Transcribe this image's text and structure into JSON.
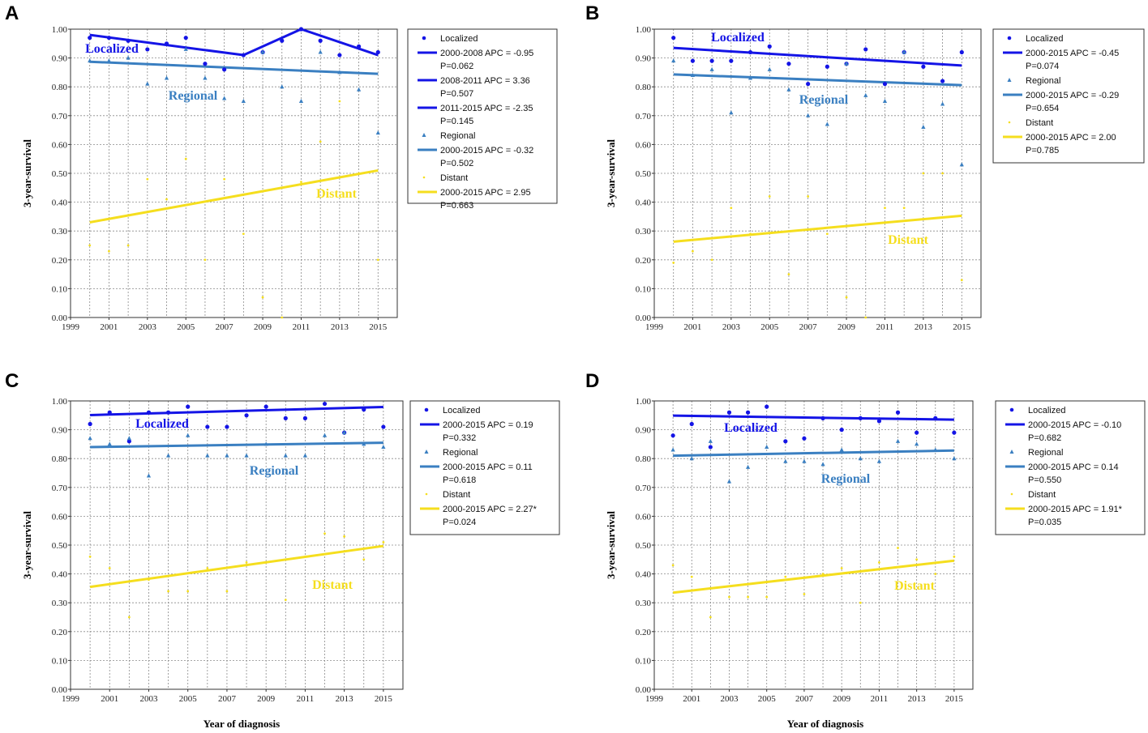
{
  "colors": {
    "localized": "#1414e6",
    "regional": "#3a7fc1",
    "distant": "#f5de1e"
  },
  "axis_labels": {
    "ylabel": "3-year-survival",
    "xlabel": "Year of diagnosis"
  },
  "chart_data": [
    {
      "panel": "A",
      "type": "scatter",
      "ylabel": "3-year-survival",
      "xlabel": "",
      "xlim": [
        1999,
        2016
      ],
      "ylim": [
        0,
        1
      ],
      "xticks": [
        "1999",
        "2001",
        "2003",
        "2005",
        "2007",
        "2009",
        "2011",
        "2013",
        "2015"
      ],
      "yticks": [
        "0.00",
        "0.10",
        "0.20",
        "0.30",
        "0.40",
        "0.50",
        "0.60",
        "0.70",
        "0.80",
        "0.90",
        "1.00"
      ],
      "group_labels": {
        "localized": "Localized",
        "regional": "Regional",
        "distant": "Distant"
      },
      "series": [
        {
          "name": "Localized",
          "key": "localized",
          "x": [
            2000,
            2001,
            2002,
            2003,
            2004,
            2005,
            2006,
            2007,
            2008,
            2009,
            2010,
            2011,
            2012,
            2013,
            2014,
            2015
          ],
          "values": [
            0.97,
            0.97,
            0.96,
            0.93,
            0.95,
            0.97,
            0.88,
            0.86,
            0.91,
            0.92,
            0.96,
            1.0,
            0.96,
            0.91,
            0.94,
            0.92
          ]
        },
        {
          "name": "Regional",
          "key": "regional",
          "x": [
            2000,
            2001,
            2002,
            2003,
            2004,
            2005,
            2006,
            2007,
            2008,
            2009,
            2010,
            2011,
            2012,
            2013,
            2014,
            2015
          ],
          "values": [
            0.89,
            0.89,
            0.9,
            0.81,
            0.83,
            0.93,
            0.83,
            0.76,
            0.75,
            0.92,
            0.8,
            0.75,
            0.92,
            0.85,
            0.79,
            0.64
          ]
        },
        {
          "name": "Distant",
          "key": "distant",
          "x": [
            2000,
            2001,
            2002,
            2003,
            2004,
            2005,
            2006,
            2007,
            2008,
            2009,
            2010,
            2011,
            2012,
            2013,
            2014,
            2015
          ],
          "values": [
            0.25,
            0.23,
            0.25,
            0.48,
            0.41,
            0.55,
            0.2,
            0.48,
            0.29,
            0.07,
            0.0,
            0.47,
            0.61,
            0.75,
            0.5,
            0.2
          ]
        }
      ],
      "trend_lines": [
        {
          "key": "localized",
          "x": [
            2000,
            2008,
            2011,
            2015
          ],
          "values": [
            0.98,
            0.91,
            1.0,
            0.91
          ]
        },
        {
          "key": "regional",
          "x": [
            2000,
            2015
          ],
          "values": [
            0.887,
            0.845
          ]
        },
        {
          "key": "distant",
          "x": [
            2000,
            2015
          ],
          "values": [
            0.33,
            0.51
          ]
        }
      ],
      "legend": [
        {
          "kind": "dot",
          "key": "localized",
          "lines": [
            "Localized"
          ]
        },
        {
          "kind": "line",
          "key": "localized",
          "lines": [
            "2000-2008 APC  = -0.95",
            "P=0.062"
          ]
        },
        {
          "kind": "line",
          "key": "localized",
          "lines": [
            "2008-2011 APC  =  3.36",
            "P=0.507"
          ]
        },
        {
          "kind": "line",
          "key": "localized",
          "lines": [
            "2011-2015 APC  = -2.35",
            "P=0.145"
          ]
        },
        {
          "kind": "tri",
          "key": "regional",
          "lines": [
            "Regional"
          ]
        },
        {
          "kind": "line",
          "key": "regional",
          "lines": [
            "2000-2015 APC  = -0.32",
            "P=0.502"
          ]
        },
        {
          "kind": "small",
          "key": "distant",
          "lines": [
            "Distant"
          ]
        },
        {
          "kind": "line",
          "key": "distant",
          "lines": [
            "2000-2015 APC  = 2.95",
            "P=0.663"
          ]
        }
      ]
    },
    {
      "panel": "B",
      "type": "scatter",
      "ylabel": "3-year-survival",
      "xlabel": "",
      "xlim": [
        1999,
        2016
      ],
      "ylim": [
        0,
        1
      ],
      "xticks": [
        "1999",
        "2001",
        "2003",
        "2005",
        "2007",
        "2009",
        "2011",
        "2013",
        "2015"
      ],
      "yticks": [
        "0.00",
        "0.10",
        "0.20",
        "0.30",
        "0.40",
        "0.50",
        "0.60",
        "0.70",
        "0.80",
        "0.90",
        "1.00"
      ],
      "group_labels": {
        "localized": "Localized",
        "regional": "Regional",
        "distant": "Distant"
      },
      "series": [
        {
          "name": "Localized",
          "key": "localized",
          "x": [
            2000,
            2001,
            2002,
            2003,
            2004,
            2005,
            2006,
            2007,
            2008,
            2009,
            2010,
            2011,
            2012,
            2013,
            2014,
            2015
          ],
          "values": [
            0.97,
            0.89,
            0.89,
            0.89,
            0.92,
            0.94,
            0.88,
            0.81,
            0.87,
            0.88,
            0.93,
            0.81,
            0.92,
            0.87,
            0.82,
            0.92
          ]
        },
        {
          "name": "Regional",
          "key": "regional",
          "x": [
            2000,
            2001,
            2002,
            2003,
            2004,
            2005,
            2006,
            2007,
            2008,
            2009,
            2010,
            2011,
            2012,
            2013,
            2014,
            2015
          ],
          "values": [
            0.89,
            0.84,
            0.86,
            0.71,
            0.83,
            0.86,
            0.79,
            0.7,
            0.67,
            0.88,
            0.77,
            0.75,
            0.92,
            0.66,
            0.74,
            0.53
          ]
        },
        {
          "name": "Distant",
          "key": "distant",
          "x": [
            2000,
            2001,
            2002,
            2003,
            2004,
            2005,
            2006,
            2007,
            2008,
            2009,
            2010,
            2011,
            2012,
            2013,
            2014,
            2015
          ],
          "values": [
            0.19,
            0.23,
            0.2,
            0.38,
            0.29,
            0.42,
            0.15,
            0.42,
            0.29,
            0.07,
            0.0,
            0.38,
            0.38,
            0.5,
            0.5,
            0.13
          ]
        }
      ],
      "trend_lines": [
        {
          "key": "localized",
          "x": [
            2000,
            2015
          ],
          "values": [
            0.935,
            0.874
          ]
        },
        {
          "key": "regional",
          "x": [
            2000,
            2015
          ],
          "values": [
            0.843,
            0.806
          ]
        },
        {
          "key": "distant",
          "x": [
            2000,
            2015
          ],
          "values": [
            0.263,
            0.353
          ]
        }
      ],
      "legend": [
        {
          "kind": "dot",
          "key": "localized",
          "lines": [
            "Localized"
          ]
        },
        {
          "kind": "line",
          "key": "localized",
          "lines": [
            "2000-2015 APC  = -0.45",
            "P=0.074"
          ]
        },
        {
          "kind": "tri",
          "key": "regional",
          "lines": [
            "Regional"
          ]
        },
        {
          "kind": "line",
          "key": "regional",
          "lines": [
            "2000-2015 APC  = -0.29",
            "P=0.654"
          ]
        },
        {
          "kind": "small",
          "key": "distant",
          "lines": [
            "Distant"
          ]
        },
        {
          "kind": "line",
          "key": "distant",
          "lines": [
            "2000-2015 APC  = 2.00",
            "P=0.785"
          ]
        }
      ]
    },
    {
      "panel": "C",
      "type": "scatter",
      "ylabel": "3-year-survival",
      "xlabel": "Year of diagnosis",
      "xlim": [
        1999,
        2016
      ],
      "ylim": [
        0,
        1
      ],
      "xticks": [
        "1999",
        "2001",
        "2003",
        "2005",
        "2007",
        "2009",
        "2011",
        "2013",
        "2015"
      ],
      "yticks": [
        "0.00",
        "0.10",
        "0.20",
        "0.30",
        "0.40",
        "0.50",
        "0.60",
        "0.70",
        "0.80",
        "0.90",
        "1.00"
      ],
      "group_labels": {
        "localized": "Localized",
        "regional": "Regional",
        "distant": "Distant"
      },
      "series": [
        {
          "name": "Localized",
          "key": "localized",
          "x": [
            2000,
            2001,
            2002,
            2003,
            2004,
            2005,
            2006,
            2007,
            2008,
            2009,
            2010,
            2011,
            2012,
            2013,
            2014,
            2015
          ],
          "values": [
            0.92,
            0.96,
            0.86,
            0.96,
            0.96,
            0.98,
            0.91,
            0.91,
            0.95,
            0.98,
            0.94,
            0.94,
            0.99,
            0.89,
            0.97,
            0.91
          ]
        },
        {
          "name": "Regional",
          "key": "regional",
          "x": [
            2000,
            2001,
            2002,
            2003,
            2004,
            2005,
            2006,
            2007,
            2008,
            2009,
            2010,
            2011,
            2012,
            2013,
            2014,
            2015
          ],
          "values": [
            0.87,
            0.85,
            0.87,
            0.74,
            0.81,
            0.88,
            0.81,
            0.81,
            0.81,
            0.85,
            0.81,
            0.81,
            0.88,
            0.89,
            0.85,
            0.84
          ]
        },
        {
          "name": "Distant",
          "key": "distant",
          "x": [
            2000,
            2001,
            2002,
            2003,
            2004,
            2005,
            2006,
            2007,
            2008,
            2009,
            2010,
            2011,
            2012,
            2013,
            2014,
            2015
          ],
          "values": [
            0.46,
            0.42,
            0.25,
            0.38,
            0.34,
            0.34,
            0.42,
            0.34,
            0.44,
            0.44,
            0.31,
            0.46,
            0.54,
            0.53,
            0.45,
            0.51
          ]
        }
      ],
      "trend_lines": [
        {
          "key": "localized",
          "x": [
            2000,
            2015
          ],
          "values": [
            0.951,
            0.979
          ]
        },
        {
          "key": "regional",
          "x": [
            2000,
            2015
          ],
          "values": [
            0.84,
            0.855
          ]
        },
        {
          "key": "distant",
          "x": [
            2000,
            2015
          ],
          "values": [
            0.355,
            0.497
          ]
        }
      ],
      "legend": [
        {
          "kind": "dot",
          "key": "localized",
          "lines": [
            "Localized"
          ]
        },
        {
          "kind": "line",
          "key": "localized",
          "lines": [
            "2000-2015 APC  = 0.19",
            "P=0.332"
          ]
        },
        {
          "kind": "tri",
          "key": "regional",
          "lines": [
            "Regional"
          ]
        },
        {
          "kind": "line",
          "key": "regional",
          "lines": [
            "2000-2015 APC  = 0.11",
            "P=0.618"
          ]
        },
        {
          "kind": "small",
          "key": "distant",
          "lines": [
            "Distant"
          ]
        },
        {
          "kind": "line",
          "key": "distant",
          "lines": [
            "2000-2015 APC  = 2.27*",
            "P=0.024"
          ]
        }
      ]
    },
    {
      "panel": "D",
      "type": "scatter",
      "ylabel": "3-year-survival",
      "xlabel": "Year of diagnosis",
      "xlim": [
        1999,
        2016
      ],
      "ylim": [
        0,
        1
      ],
      "xticks": [
        "1999",
        "2001",
        "2003",
        "2005",
        "2007",
        "2009",
        "2011",
        "2013",
        "2015"
      ],
      "yticks": [
        "0.00",
        "0.10",
        "0.20",
        "0.30",
        "0.40",
        "0.50",
        "0.60",
        "0.70",
        "0.80",
        "0.90",
        "1.00"
      ],
      "group_labels": {
        "localized": "Localized",
        "regional": "Regional",
        "distant": "Distant"
      },
      "series": [
        {
          "name": "Localized",
          "key": "localized",
          "x": [
            2000,
            2001,
            2002,
            2003,
            2004,
            2005,
            2006,
            2007,
            2008,
            2009,
            2010,
            2011,
            2012,
            2013,
            2014,
            2015
          ],
          "values": [
            0.88,
            0.92,
            0.84,
            0.96,
            0.96,
            0.98,
            0.86,
            0.87,
            0.94,
            0.9,
            0.94,
            0.93,
            0.96,
            0.89,
            0.94,
            0.89
          ]
        },
        {
          "name": "Regional",
          "key": "regional",
          "x": [
            2000,
            2001,
            2002,
            2003,
            2004,
            2005,
            2006,
            2007,
            2008,
            2009,
            2010,
            2011,
            2012,
            2013,
            2014,
            2015
          ],
          "values": [
            0.83,
            0.8,
            0.86,
            0.72,
            0.77,
            0.84,
            0.79,
            0.79,
            0.78,
            0.83,
            0.8,
            0.79,
            0.86,
            0.85,
            0.83,
            0.8
          ]
        },
        {
          "name": "Distant",
          "key": "distant",
          "x": [
            2000,
            2001,
            2002,
            2003,
            2004,
            2005,
            2006,
            2007,
            2008,
            2009,
            2010,
            2011,
            2012,
            2013,
            2014,
            2015
          ],
          "values": [
            0.43,
            0.39,
            0.25,
            0.32,
            0.32,
            0.32,
            0.39,
            0.33,
            0.4,
            0.42,
            0.3,
            0.44,
            0.49,
            0.45,
            0.4,
            0.46
          ]
        }
      ],
      "trend_lines": [
        {
          "key": "localized",
          "x": [
            2000,
            2015
          ],
          "values": [
            0.949,
            0.935
          ]
        },
        {
          "key": "regional",
          "x": [
            2000,
            2015
          ],
          "values": [
            0.81,
            0.828
          ]
        },
        {
          "key": "distant",
          "x": [
            2000,
            2015
          ],
          "values": [
            0.335,
            0.446
          ]
        }
      ],
      "legend": [
        {
          "kind": "dot",
          "key": "localized",
          "lines": [
            "Localized"
          ]
        },
        {
          "kind": "line",
          "key": "localized",
          "lines": [
            "2000-2015 APC  = -0.10",
            "P=0.682"
          ]
        },
        {
          "kind": "tri",
          "key": "regional",
          "lines": [
            "Regional"
          ]
        },
        {
          "kind": "line",
          "key": "regional",
          "lines": [
            "2000-2015 APC  = 0.14",
            "P=0.550"
          ]
        },
        {
          "kind": "small",
          "key": "distant",
          "lines": [
            "Distant"
          ]
        },
        {
          "kind": "line",
          "key": "distant",
          "lines": [
            "2000-2015 APC  = 1.91*",
            "P=0.035"
          ]
        }
      ]
    }
  ]
}
